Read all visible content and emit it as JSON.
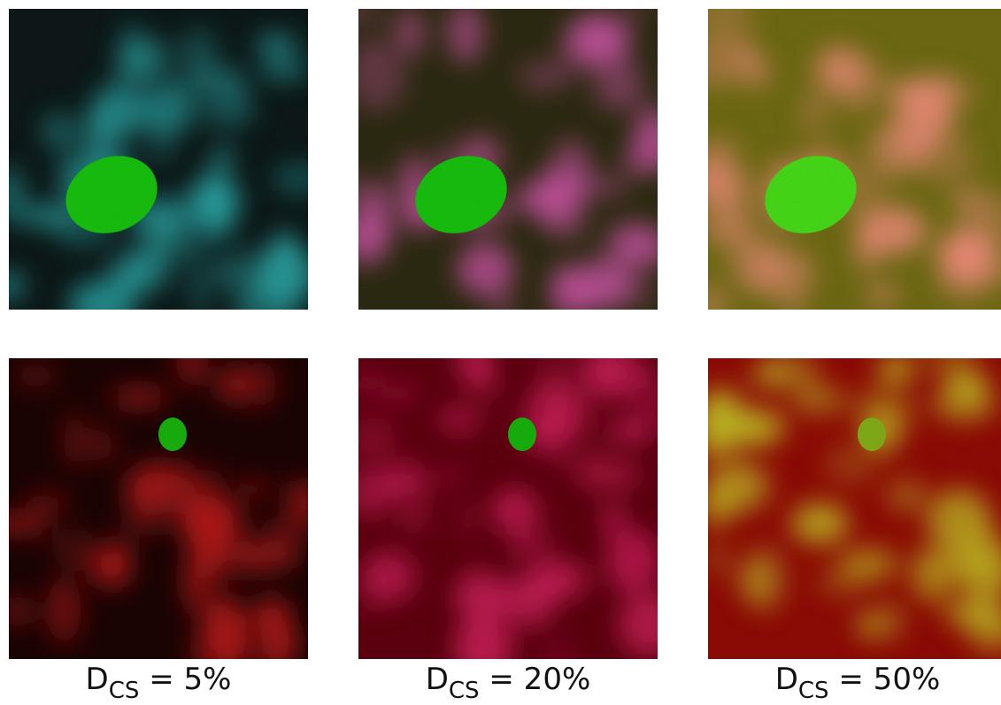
{
  "panels": [
    {
      "label": {
        "main": "D",
        "subscript": "CS",
        "rest": "= 5%"
      }
    },
    {
      "label": {
        "main": "D",
        "subscript": "CS",
        "rest": "= 20%"
      }
    },
    {
      "label": {
        "main": "D",
        "subscript": "CS",
        "rest": "= 50%"
      }
    }
  ]
}
